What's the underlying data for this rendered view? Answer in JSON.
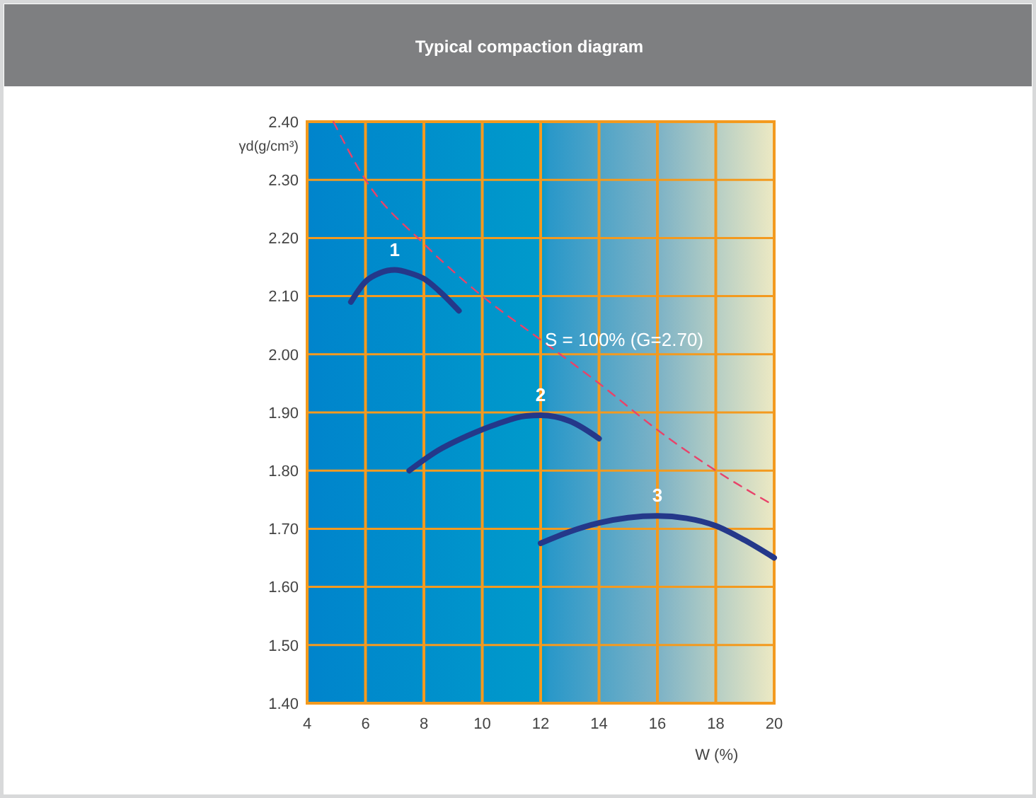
{
  "chart_data": {
    "type": "line",
    "title": "Typical compaction diagram",
    "xlabel": "W (%)",
    "ylabel": "γd(g/cm³)",
    "xlim": [
      4,
      20
    ],
    "xticks": [
      4,
      6,
      8,
      10,
      12,
      14,
      16,
      18,
      20
    ],
    "ylim": [
      1.4,
      2.4
    ],
    "yticks": [
      {
        "value": 1.4,
        "label": "1.40"
      },
      {
        "value": 1.5,
        "label": "1.50"
      },
      {
        "value": 1.6,
        "label": "1.60"
      },
      {
        "value": 1.7,
        "label": "1.70"
      },
      {
        "value": 1.8,
        "label": "1.80"
      },
      {
        "value": 1.9,
        "label": "1.90"
      },
      {
        "value": 2.0,
        "label": "2.00"
      },
      {
        "value": 2.1,
        "label": "2.10"
      },
      {
        "value": 2.2,
        "label": "2.20"
      },
      {
        "value": 2.3,
        "label": "2.30"
      },
      {
        "value": 2.4,
        "label": "2.40"
      }
    ],
    "grid": true,
    "marker": "none",
    "series": [
      {
        "name": "1",
        "color": "#24388a",
        "line_style": "solid",
        "x": [
          5.5,
          6,
          6.5,
          7,
          7.5,
          8,
          8.5,
          9.2
        ],
        "values": [
          2.09,
          2.125,
          2.14,
          2.145,
          2.14,
          2.13,
          2.11,
          2.075
        ]
      },
      {
        "name": "2",
        "color": "#24388a",
        "line_style": "solid",
        "x": [
          7.5,
          8.5,
          9.5,
          10.5,
          11.5,
          12,
          13,
          14
        ],
        "values": [
          1.8,
          1.835,
          1.86,
          1.88,
          1.894,
          1.895,
          1.885,
          1.855
        ]
      },
      {
        "name": "3",
        "color": "#24388a",
        "line_style": "solid",
        "x": [
          12,
          13,
          14,
          15,
          16,
          17,
          18,
          19,
          20
        ],
        "values": [
          1.675,
          1.695,
          1.71,
          1.719,
          1.722,
          1.718,
          1.705,
          1.68,
          1.65
        ]
      },
      {
        "name": "S = 100% (G=2.70)",
        "color": "#e8436a",
        "line_style": "dashed",
        "x": [
          4.9,
          6,
          8,
          10,
          12,
          14,
          16,
          18,
          20
        ],
        "values": [
          2.4,
          2.3,
          2.19,
          2.1,
          2.025,
          1.95,
          1.87,
          1.8,
          1.74
        ]
      }
    ]
  }
}
